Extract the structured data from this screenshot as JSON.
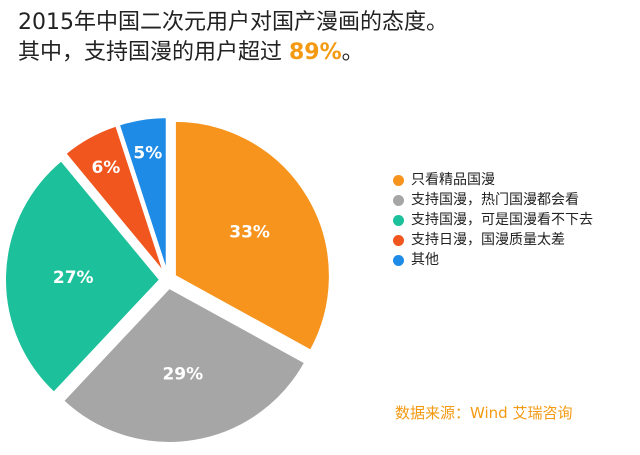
{
  "header": {
    "title_line1": "2015年中国二次元用户对国产漫画的态度。",
    "title_line2_prefix": "其中，支持国漫的用户超过 ",
    "title_line2_highlight": "89%",
    "title_line2_suffix": "。"
  },
  "chart_data": {
    "type": "pie",
    "title": "2015年中国二次元用户对国产漫画的态度。",
    "slices": [
      {
        "label": "只看精品国漫",
        "value": 33,
        "display": "33%",
        "color": "#f7941d"
      },
      {
        "label": "支持国漫，热门国漫都会看",
        "value": 29,
        "display": "29%",
        "color": "#a6a6a6"
      },
      {
        "label": "支持国漫，可是国漫看不下去",
        "value": 27,
        "display": "27%",
        "color": "#1cc09b"
      },
      {
        "label": "支持日漫，国漫质量太差",
        "value": 6,
        "display": "6%",
        "color": "#f0561d"
      },
      {
        "label": "其他",
        "value": 5,
        "display": "5%",
        "color": "#1e8be6"
      }
    ],
    "legend_position": "right"
  },
  "source": {
    "text": "数据来源：Wind  艾瑞咨询"
  },
  "colors": {
    "accent": "#f39a12"
  }
}
